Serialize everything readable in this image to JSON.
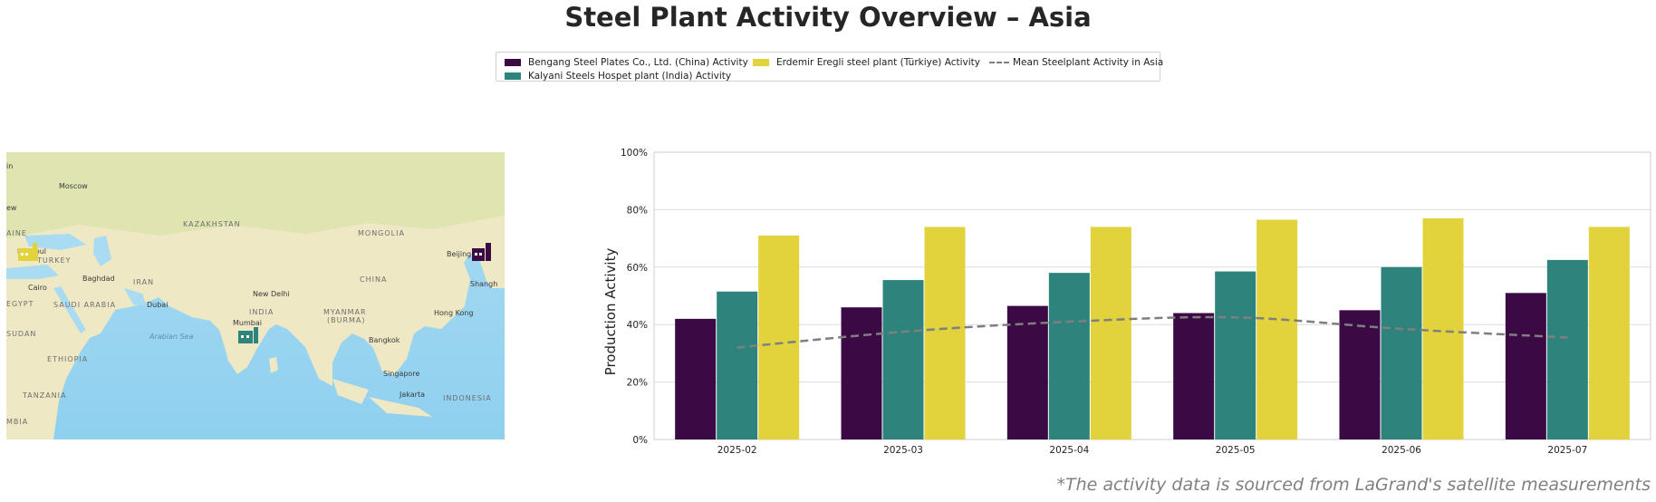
{
  "title": "Steel Plant Activity Overview – Asia",
  "legend": {
    "items": [
      {
        "label": "Bengang Steel Plates Co., Ltd. (China) Activity",
        "color": "#3b0a45"
      },
      {
        "label": "Kalyani Steels Hospet plant (India) Activity",
        "color": "#2e837c"
      },
      {
        "label": "Erdemir Eregli steel plant (Türkiye) Activity",
        "color": "#e2d33d"
      },
      {
        "label": "Mean Steelplant Activity in Asia",
        "color": "#7f7f7f",
        "style": "dashed"
      }
    ]
  },
  "map": {
    "labels": [
      {
        "text": "Moscow",
        "kind": "city"
      },
      {
        "text": "KAZAKHSTAN",
        "kind": "country"
      },
      {
        "text": "MONGOLIA",
        "kind": "country"
      },
      {
        "text": "Beijing",
        "kind": "city"
      },
      {
        "text": "Shangh",
        "kind": "city"
      },
      {
        "text": "CHINA",
        "kind": "country"
      },
      {
        "text": "Istanbul",
        "kind": "city"
      },
      {
        "text": "TURKEY",
        "kind": "country"
      },
      {
        "text": "Baghdad",
        "kind": "city"
      },
      {
        "text": "IRAN",
        "kind": "country"
      },
      {
        "text": "Cairo",
        "kind": "city"
      },
      {
        "text": "EGYPT",
        "kind": "country"
      },
      {
        "text": "SAUDI ARABIA",
        "kind": "country"
      },
      {
        "text": "Dubai",
        "kind": "city"
      },
      {
        "text": "New Delhi",
        "kind": "city"
      },
      {
        "text": "INDIA",
        "kind": "country"
      },
      {
        "text": "MYANMAR",
        "kind": "country"
      },
      {
        "text": "(BURMA)",
        "kind": "country"
      },
      {
        "text": "Hong Kong",
        "kind": "city"
      },
      {
        "text": "Mumbai",
        "kind": "city"
      },
      {
        "text": "SUDAN",
        "kind": "country"
      },
      {
        "text": "Arabian Sea",
        "kind": "sea"
      },
      {
        "text": "Bangkok",
        "kind": "city"
      },
      {
        "text": "ETHIOPIA",
        "kind": "country"
      },
      {
        "text": "Singapore",
        "kind": "city"
      },
      {
        "text": "Jakarta",
        "kind": "city"
      },
      {
        "text": "TANZANIA",
        "kind": "country"
      },
      {
        "text": "INDONESIA",
        "kind": "country"
      },
      {
        "text": "ew",
        "kind": "city"
      },
      {
        "text": "in",
        "kind": "city"
      },
      {
        "text": "AINE",
        "kind": "country"
      },
      {
        "text": "MBIA",
        "kind": "country"
      }
    ],
    "markers": [
      {
        "name": "Erdemir Eregli steel plant",
        "color": "#e2d33d"
      },
      {
        "name": "Kalyani Steels Hospet plant",
        "color": "#2e837c"
      },
      {
        "name": "Bengang Steel Plates Co., Ltd.",
        "color": "#3b0a45"
      }
    ]
  },
  "chart_data": {
    "type": "bar",
    "categories": [
      "2025-02",
      "2025-03",
      "2025-04",
      "2025-05",
      "2025-06",
      "2025-07"
    ],
    "series": [
      {
        "name": "Bengang Steel Plates Co., Ltd. (China) Activity",
        "color": "#3b0a45",
        "values": [
          42,
          46,
          46.5,
          44,
          45,
          51
        ]
      },
      {
        "name": "Kalyani Steels Hospet plant (India) Activity",
        "color": "#2e837c",
        "values": [
          51.5,
          55.5,
          58,
          58.5,
          60,
          62.5
        ]
      },
      {
        "name": "Erdemir Eregli steel plant (Türkiye) Activity",
        "color": "#e2d33d",
        "values": [
          71,
          74,
          74,
          76.5,
          77,
          74
        ]
      }
    ],
    "mean_line": {
      "name": "Mean Steelplant Activity in Asia",
      "color": "#7f7f7f",
      "style": "dashed",
      "values": [
        32,
        37.5,
        41,
        42.5,
        38.5,
        35.5
      ]
    },
    "ylabel": "Production Activity",
    "xlabel": "",
    "ylim": [
      0,
      100
    ],
    "yticks": [
      "0%",
      "20%",
      "40%",
      "60%",
      "80%",
      "100%"
    ],
    "grid": true,
    "legend_position": "top-center"
  },
  "source_note": "*The activity data is sourced from LaGrand's satellite measurements"
}
